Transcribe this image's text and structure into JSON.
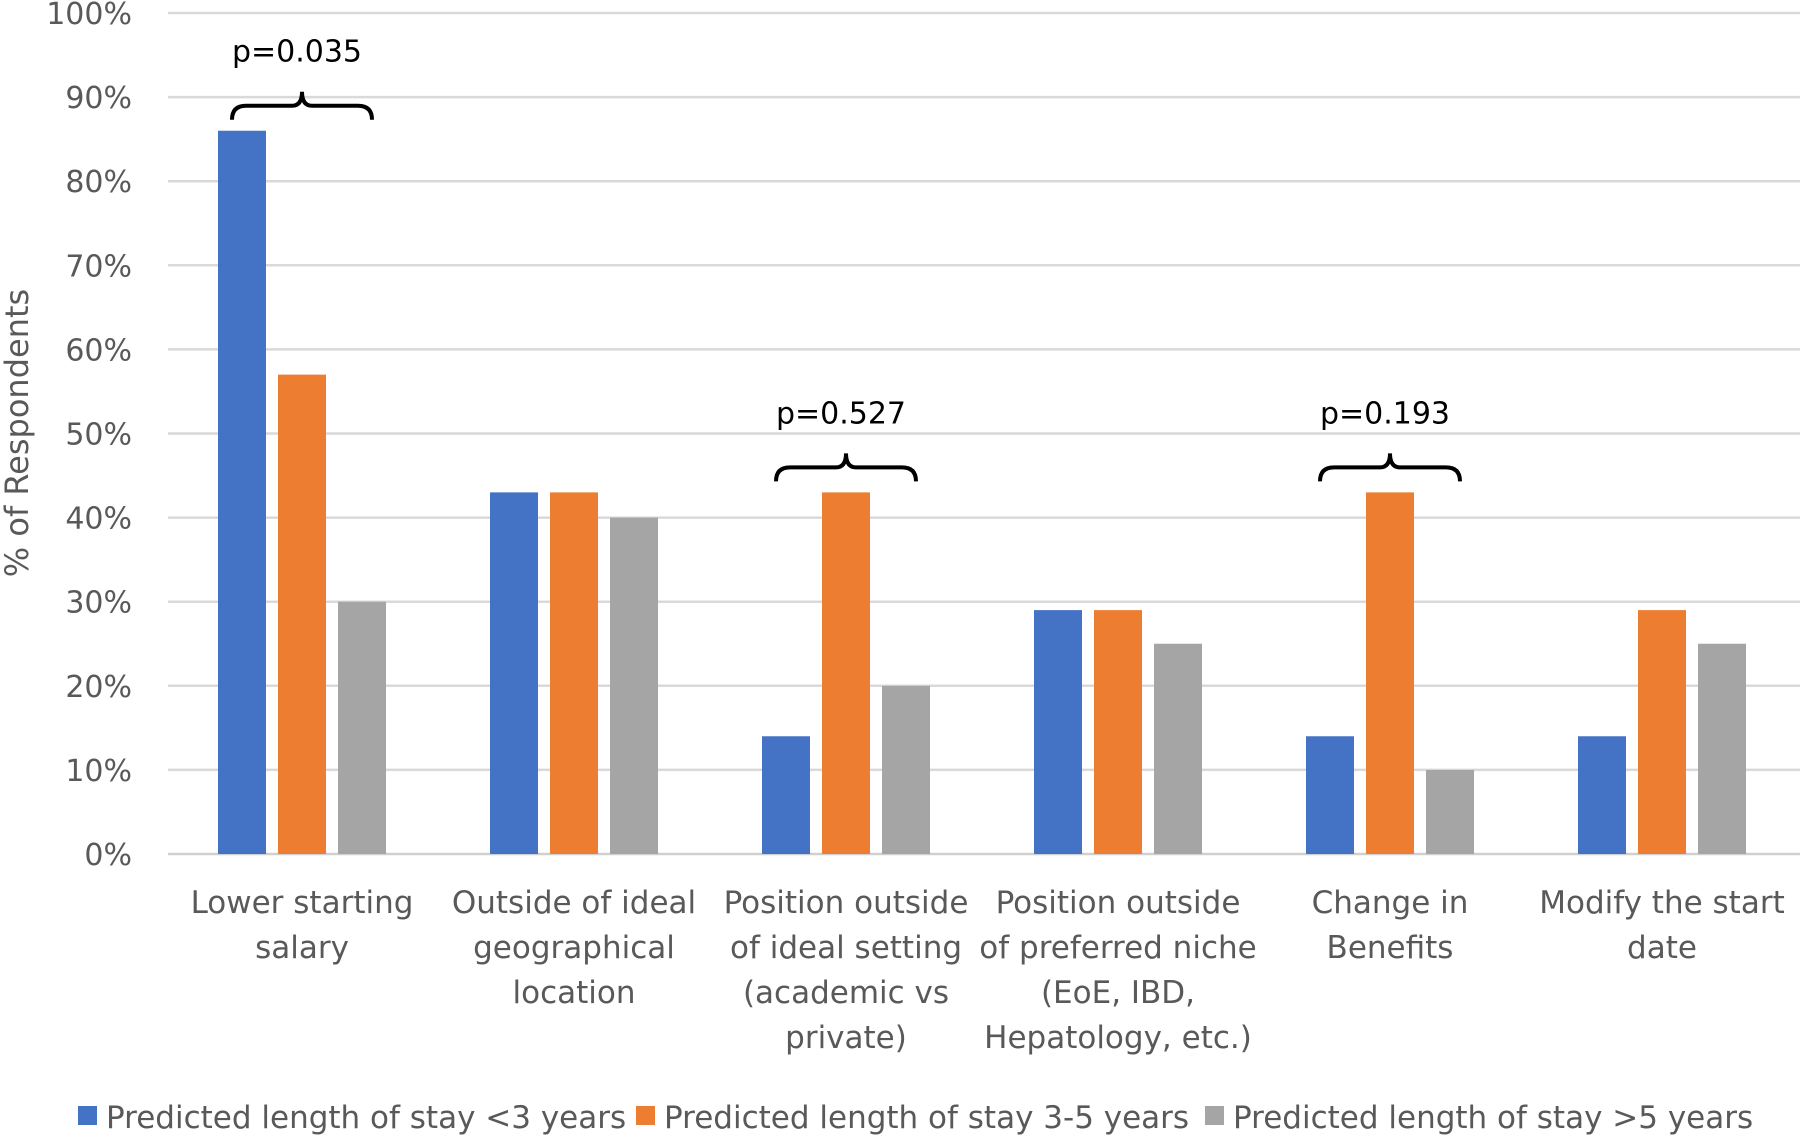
{
  "chart_data": {
    "type": "bar",
    "ylabel": "% of Respondents",
    "ylim": [
      0,
      100
    ],
    "yticks": [
      "0%",
      "10%",
      "20%",
      "30%",
      "40%",
      "50%",
      "60%",
      "70%",
      "80%",
      "90%",
      "100%"
    ],
    "grid": true,
    "legend_position": "bottom",
    "categories": [
      [
        "Lower starting",
        "salary"
      ],
      [
        "Outside of ideal",
        "geographical",
        "location"
      ],
      [
        "Position outside",
        "of ideal setting",
        "(academic vs",
        "private)"
      ],
      [
        "Position outside",
        "of preferred niche",
        "(EoE, IBD,",
        "Hepatology, etc.)"
      ],
      [
        "Change in",
        "Benefits"
      ],
      [
        "Modify the start",
        "date"
      ]
    ],
    "series": [
      {
        "name": "Predicted length of stay <3 years",
        "color": "#4472C4",
        "values": [
          86,
          43,
          14,
          29,
          14,
          14
        ]
      },
      {
        "name": "Predicted length of stay 3-5 years",
        "color": "#ED7D31",
        "values": [
          57,
          43,
          43,
          29,
          43,
          29
        ]
      },
      {
        "name": "Predicted length of stay >5 years",
        "color": "#A5A5A5",
        "values": [
          30,
          40,
          20,
          25,
          10,
          25
        ]
      }
    ],
    "annotations": [
      {
        "category_index": 0,
        "text": "p=0.035"
      },
      {
        "category_index": 2,
        "text": "p=0.527"
      },
      {
        "category_index": 4,
        "text": "p=0.193"
      }
    ]
  }
}
